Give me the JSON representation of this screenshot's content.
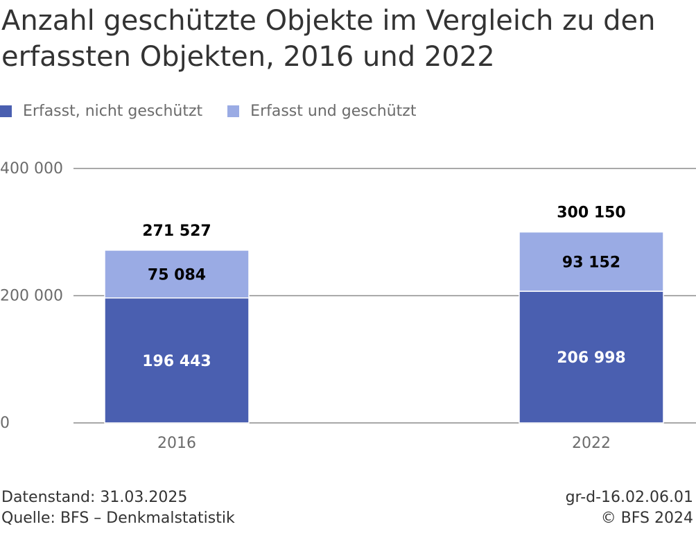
{
  "title_line1": "Anzahl geschützte Objekte im Vergleich zu den",
  "title_line2": "erfassten Objekten, 2016 und 2022",
  "legend": [
    {
      "label": "Erfasst, nicht geschützt",
      "color": "#4a5fb0"
    },
    {
      "label": "Erfasst und geschützt",
      "color": "#9aabe4"
    }
  ],
  "chart_data": {
    "type": "bar",
    "stacked": true,
    "categories": [
      "2016",
      "2022"
    ],
    "series": [
      {
        "name": "Erfasst, nicht geschützt",
        "values": [
          196443,
          206998
        ],
        "labels": [
          "196 443",
          "206 998"
        ],
        "color": "#4a5fb0",
        "label_color": "#ffffff"
      },
      {
        "name": "Erfasst und geschützt",
        "values": [
          75084,
          93152
        ],
        "labels": [
          "75 084",
          "93 152"
        ],
        "color": "#9aabe4",
        "label_color": "#000000"
      }
    ],
    "totals": [
      271527,
      300150
    ],
    "total_labels": [
      "271 527",
      "300 150"
    ],
    "yticks": [
      0,
      200000,
      400000
    ],
    "ytick_labels": [
      "0",
      "200 000",
      "400 000"
    ],
    "ylim": [
      0,
      400000
    ],
    "title": "Anzahl geschützte Objekte im Vergleich zu den erfassten Objekten, 2016 und 2022",
    "legend_position": "top-left",
    "grid": true
  },
  "footer": {
    "datenstand": "Datenstand: 31.03.2025",
    "quelle": "Quelle: BFS – Denkmalstatistik",
    "code": "gr-d-16.02.06.01",
    "copyright": "© BFS 2024"
  }
}
